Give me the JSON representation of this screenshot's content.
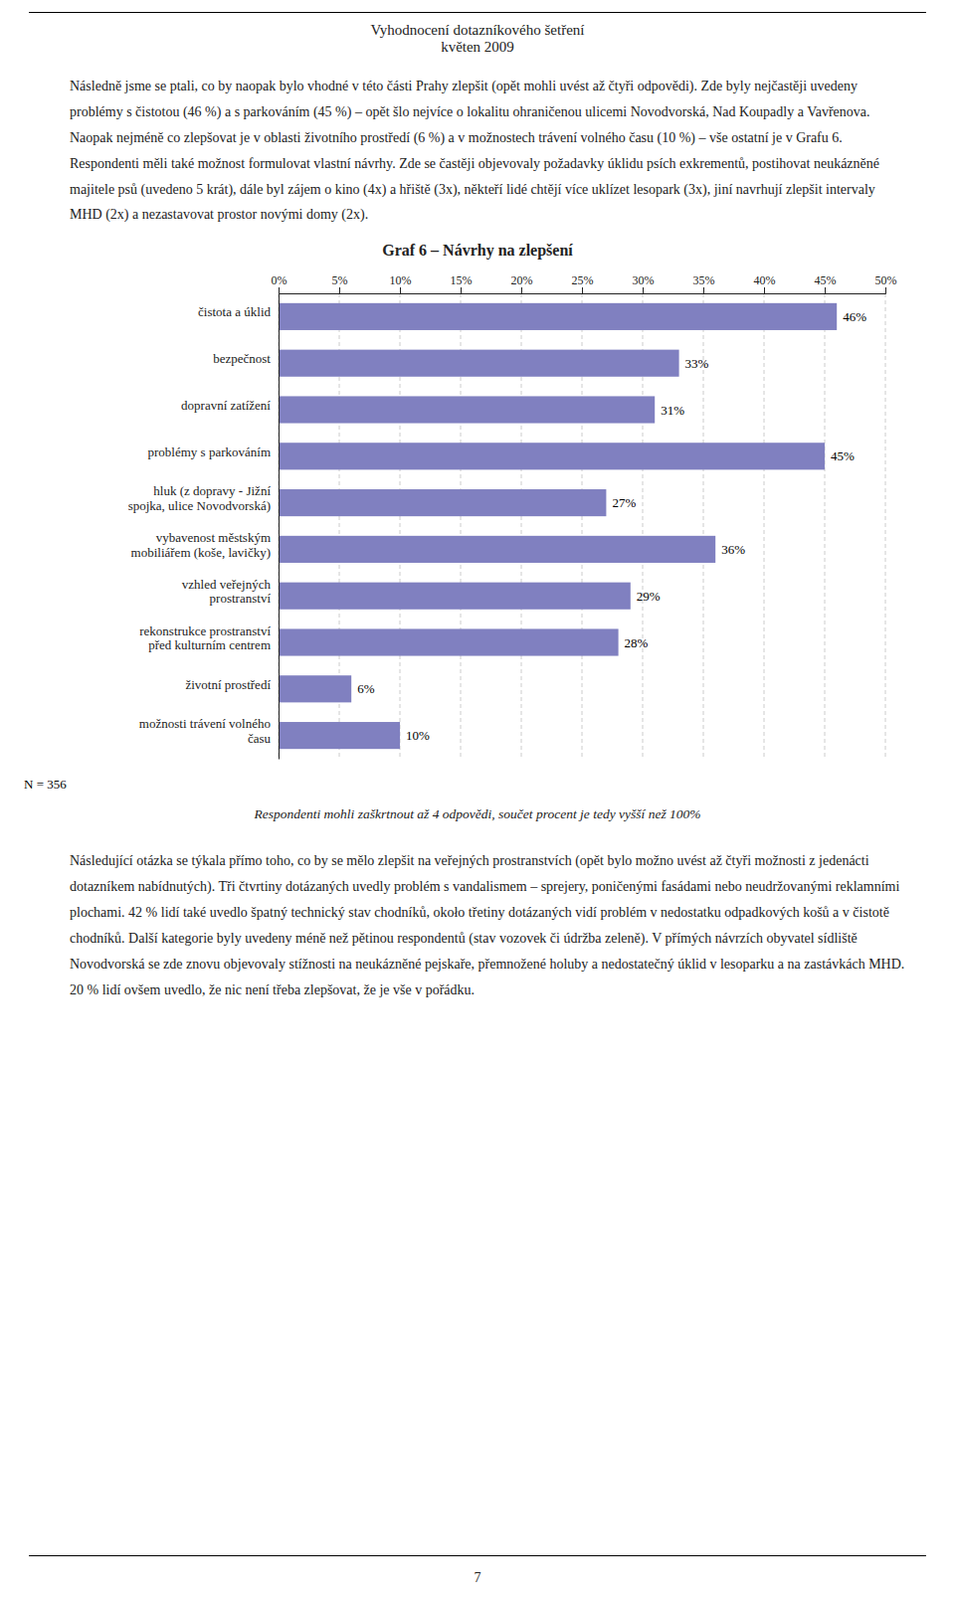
{
  "page_title": "Vyhodnocení dotazníkového šetření",
  "page_subtitle": "květen 2009",
  "intro_text": "Následně jsme se ptali, co by naopak bylo vhodné v této části Prahy zlepšit (opět mohli uvést až čtyři odpovědi). Zde byly nejčastěji uvedeny problémy s čistotou (46 %) a s parkováním (45 %) – opět šlo nejvíce o lokalitu ohraničenou ulicemi Novodvorská, Nad Koupadly a Vavřenova. Naopak nejméně co zlepšovat je v oblasti životního prostředí (6 %) a v možnostech trávení volného času (10 %) – vše ostatní je v Grafu 6. Respondenti měli také možnost formulovat vlastní návrhy. Zde se častěji objevovaly požadavky úklidu psích exkrementů, postihovat neukázněné majitele psů (uvedeno 5 krát), dále byl zájem o kino (4x) a hřiště (3x), někteří lidé chtějí více uklízet lesopark (3x), jiní navrhují zlepšit intervaly MHD (2x) a nezastavovat prostor novými domy (2x).",
  "footnote": "Respondenti mohli zaškrtnout až 4 odpovědi, součet procent je tedy vyšší než 100%",
  "outro_text": "Následující otázka se týkala přímo toho, co by se mělo zlepšit na veřejných prostranstvích (opět bylo možno uvést až čtyři možnosti z jedenácti dotazníkem nabídnutých). Tři čtvrtiny dotázaných uvedly problém s vandalismem – sprejery, poničenými fasádami nebo neudržovanými reklamními plochami. 42 % lidí také uvedlo špatný technický stav chodníků, około třetiny dotázaných vidí problém v nedostatku odpadkových košů a v čistotě chodníků. Další kategorie byly uvedeny méně než pětinou respondentů (stav vozovek či údržba zeleně). V přímých návrzích obyvatel sídliště Novodvorská se zde znovu objevovaly stížnosti na neukázněné pejskaře, přemnožené holuby a nedostatečný úklid v lesoparku a na zastávkách MHD. 20 % lidí ovšem uvedlo, že nic není třeba zlepšovat, že je vše v pořádku.",
  "page_number": "7",
  "chart_data": {
    "type": "bar",
    "orientation": "horizontal",
    "title": "Graf 6 – Návrhy na zlepšení",
    "categories": [
      "čistota a úklid",
      "bezpečnost",
      "dopravní zatížení",
      "problémy s parkováním",
      "hluk (z dopravy - Jižní\nspojka, ulice Novodvorská)",
      "vybavenost městským\nmobiliářem (koše, lavičky)",
      "vzhled veřejných\nprostranství",
      "rekonstrukce prostranství\npřed kulturním centrem",
      "životní prostředí",
      "možnosti trávení volného\nčasu"
    ],
    "values": [
      46,
      33,
      31,
      45,
      27,
      36,
      29,
      28,
      6,
      10
    ],
    "value_labels": [
      "46%",
      "33%",
      "31%",
      "45%",
      "27%",
      "36%",
      "29%",
      "28%",
      "6%",
      "10%"
    ],
    "data_labels": true,
    "color": "#8080c0",
    "xlim": [
      0,
      50
    ],
    "xticks": [
      {
        "value": 0,
        "label": "0%"
      },
      {
        "value": 5,
        "label": "5%"
      },
      {
        "value": 10,
        "label": "10%"
      },
      {
        "value": 15,
        "label": "15%"
      },
      {
        "value": 20,
        "label": "20%"
      },
      {
        "value": 25,
        "label": "25%"
      },
      {
        "value": 30,
        "label": "30%"
      },
      {
        "value": 35,
        "label": "35%"
      },
      {
        "value": 40,
        "label": "40%"
      },
      {
        "value": 45,
        "label": "45%"
      },
      {
        "value": 50,
        "label": "50%"
      }
    ],
    "grid": true,
    "annotations": [
      "N = 356"
    ]
  }
}
